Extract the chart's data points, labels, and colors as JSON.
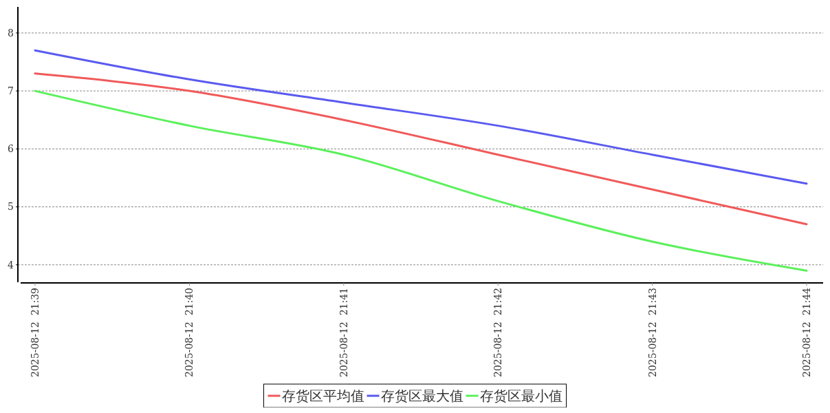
{
  "chart_data": {
    "type": "line",
    "categories": [
      "2025-08-12  21:39",
      "2025-08-12  21:40",
      "2025-08-12  21:41",
      "2025-08-12  21:42",
      "2025-08-12  21:43",
      "2025-08-12  21:44"
    ],
    "series": [
      {
        "name": "存货区平均值",
        "color": "#f05a5a",
        "values": [
          7.3,
          7.0,
          6.5,
          5.9,
          5.3,
          4.7
        ]
      },
      {
        "name": "存货区最大值",
        "color": "#5a5af0",
        "values": [
          7.7,
          7.2,
          6.8,
          6.4,
          5.9,
          5.4
        ]
      },
      {
        "name": "存货区最小值",
        "color": "#5af05a",
        "values": [
          7.0,
          6.4,
          5.9,
          5.1,
          4.4,
          3.9
        ]
      }
    ],
    "ylim": [
      3.7,
      8.45
    ],
    "yticks": [
      4,
      5,
      6,
      7,
      8
    ],
    "grid": "y",
    "legend": "bottom",
    "marker": "none",
    "line_style": "solid"
  }
}
